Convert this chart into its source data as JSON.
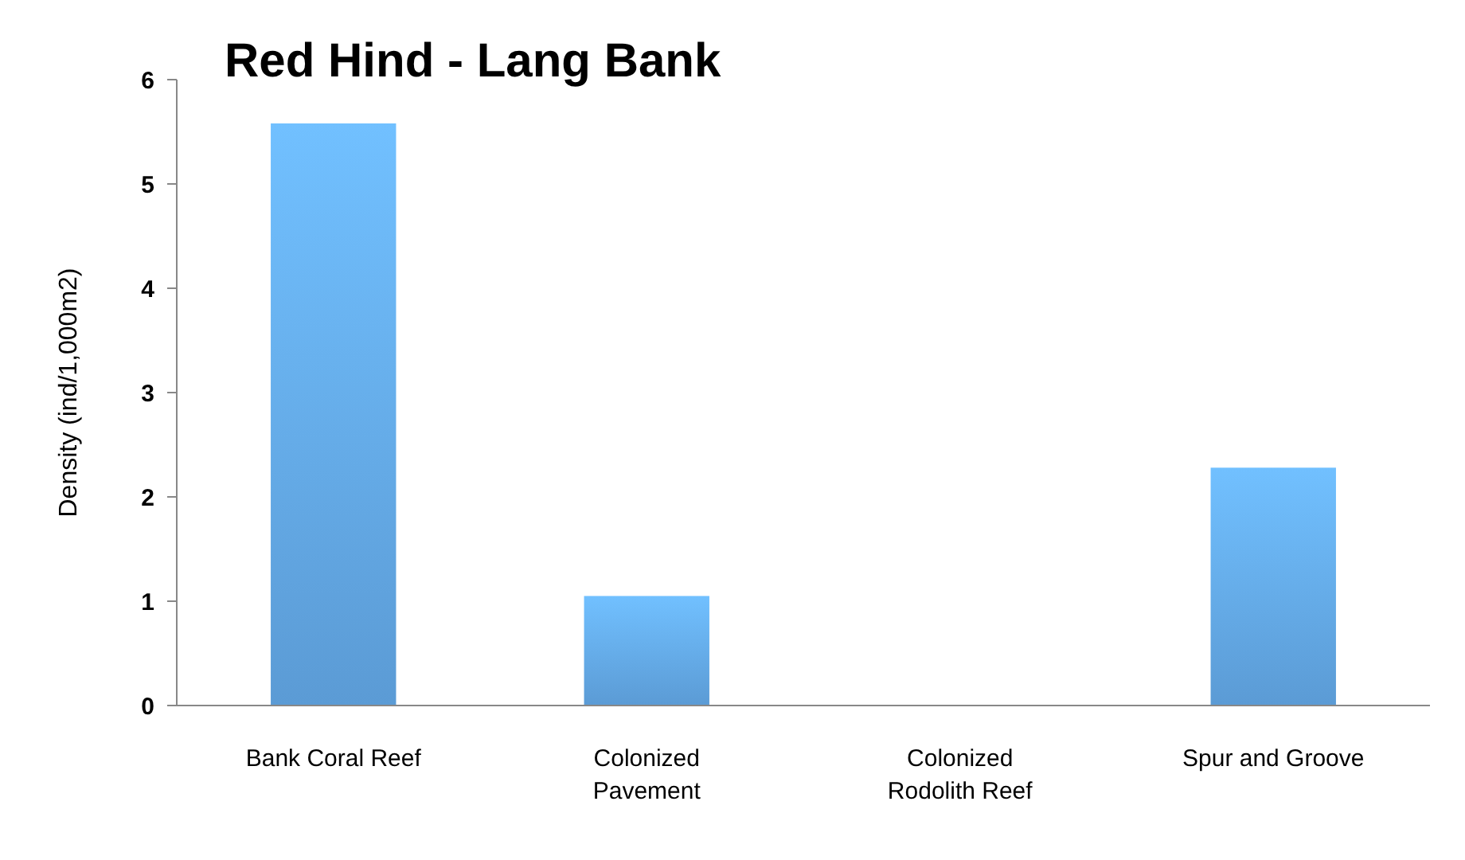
{
  "chart_data": {
    "type": "bar",
    "title": "Red Hind - Lang Bank",
    "ylabel": "Density (ind/1,000m2)",
    "categories": [
      "Bank Coral Reef",
      "Colonized Pavement",
      "Colonized Rodolith Reef",
      "Spur and Groove"
    ],
    "values": [
      5.58,
      1.05,
      0,
      2.28
    ],
    "color": "#5b9bd5",
    "ylim": [
      0,
      6
    ],
    "yticks": [
      0,
      1,
      2,
      3,
      4,
      5,
      6
    ],
    "grid": false
  }
}
